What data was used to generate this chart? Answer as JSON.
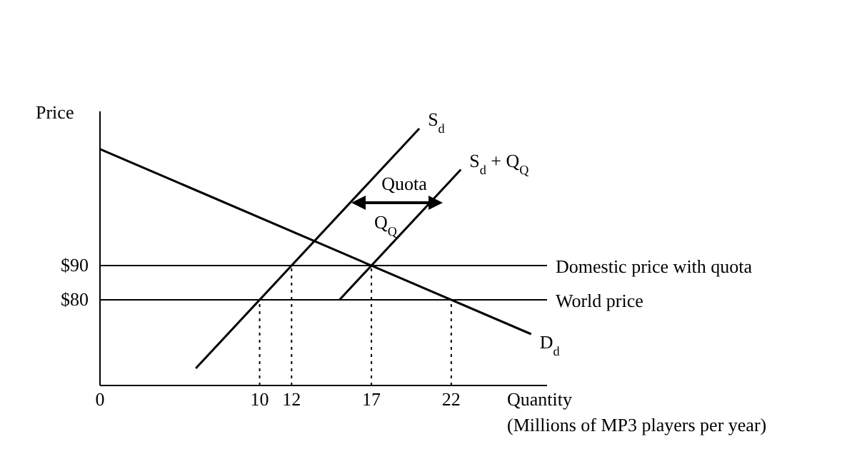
{
  "chart_data": {
    "type": "line",
    "xlabel": "Quantity\n(Millions of MP3 players per year)",
    "ylabel": "Price",
    "xlim": [
      0,
      28
    ],
    "ylim": [
      55,
      135
    ],
    "xticks": [
      0,
      10,
      12,
      17,
      22
    ],
    "yticks": [
      {
        "value": 80,
        "label": "$80"
      },
      {
        "value": 90,
        "label": "$90"
      }
    ],
    "series": [
      {
        "name": "S$_{d}$",
        "color": "#000000",
        "x": [
          6,
          20
        ],
        "values": [
          60,
          130
        ]
      },
      {
        "name": "S$_{d}$ + Q$_{Q}$",
        "color": "#000000",
        "x": [
          15,
          22.6
        ],
        "values": [
          80,
          118
        ]
      },
      {
        "name": "D$_{d}$",
        "color": "#000000",
        "x": [
          0,
          27
        ],
        "values": [
          124,
          70
        ]
      },
      {
        "color": "#000000",
        "line_style": "dotted",
        "x": [
          10,
          10
        ],
        "values": [
          55,
          80
        ]
      },
      {
        "color": "#000000",
        "line_style": "dotted",
        "x": [
          12,
          12
        ],
        "values": [
          55,
          90
        ]
      },
      {
        "color": "#000000",
        "line_style": "dotted",
        "x": [
          17,
          17
        ],
        "values": [
          55,
          90
        ]
      },
      {
        "color": "#000000",
        "line_style": "dotted",
        "x": [
          22,
          22
        ],
        "values": [
          55,
          80
        ]
      }
    ],
    "ref_lines": [
      {
        "axis": "y",
        "value": 90,
        "label": "Domestic price with quota",
        "color": "#000000"
      },
      {
        "axis": "y",
        "value": 80,
        "label": "World price",
        "color": "#000000"
      }
    ],
    "annotations": [
      "Quota",
      "Q$_{Q}$"
    ],
    "grid": false,
    "legend": false,
    "marker": "none",
    "line_style": "solid"
  }
}
